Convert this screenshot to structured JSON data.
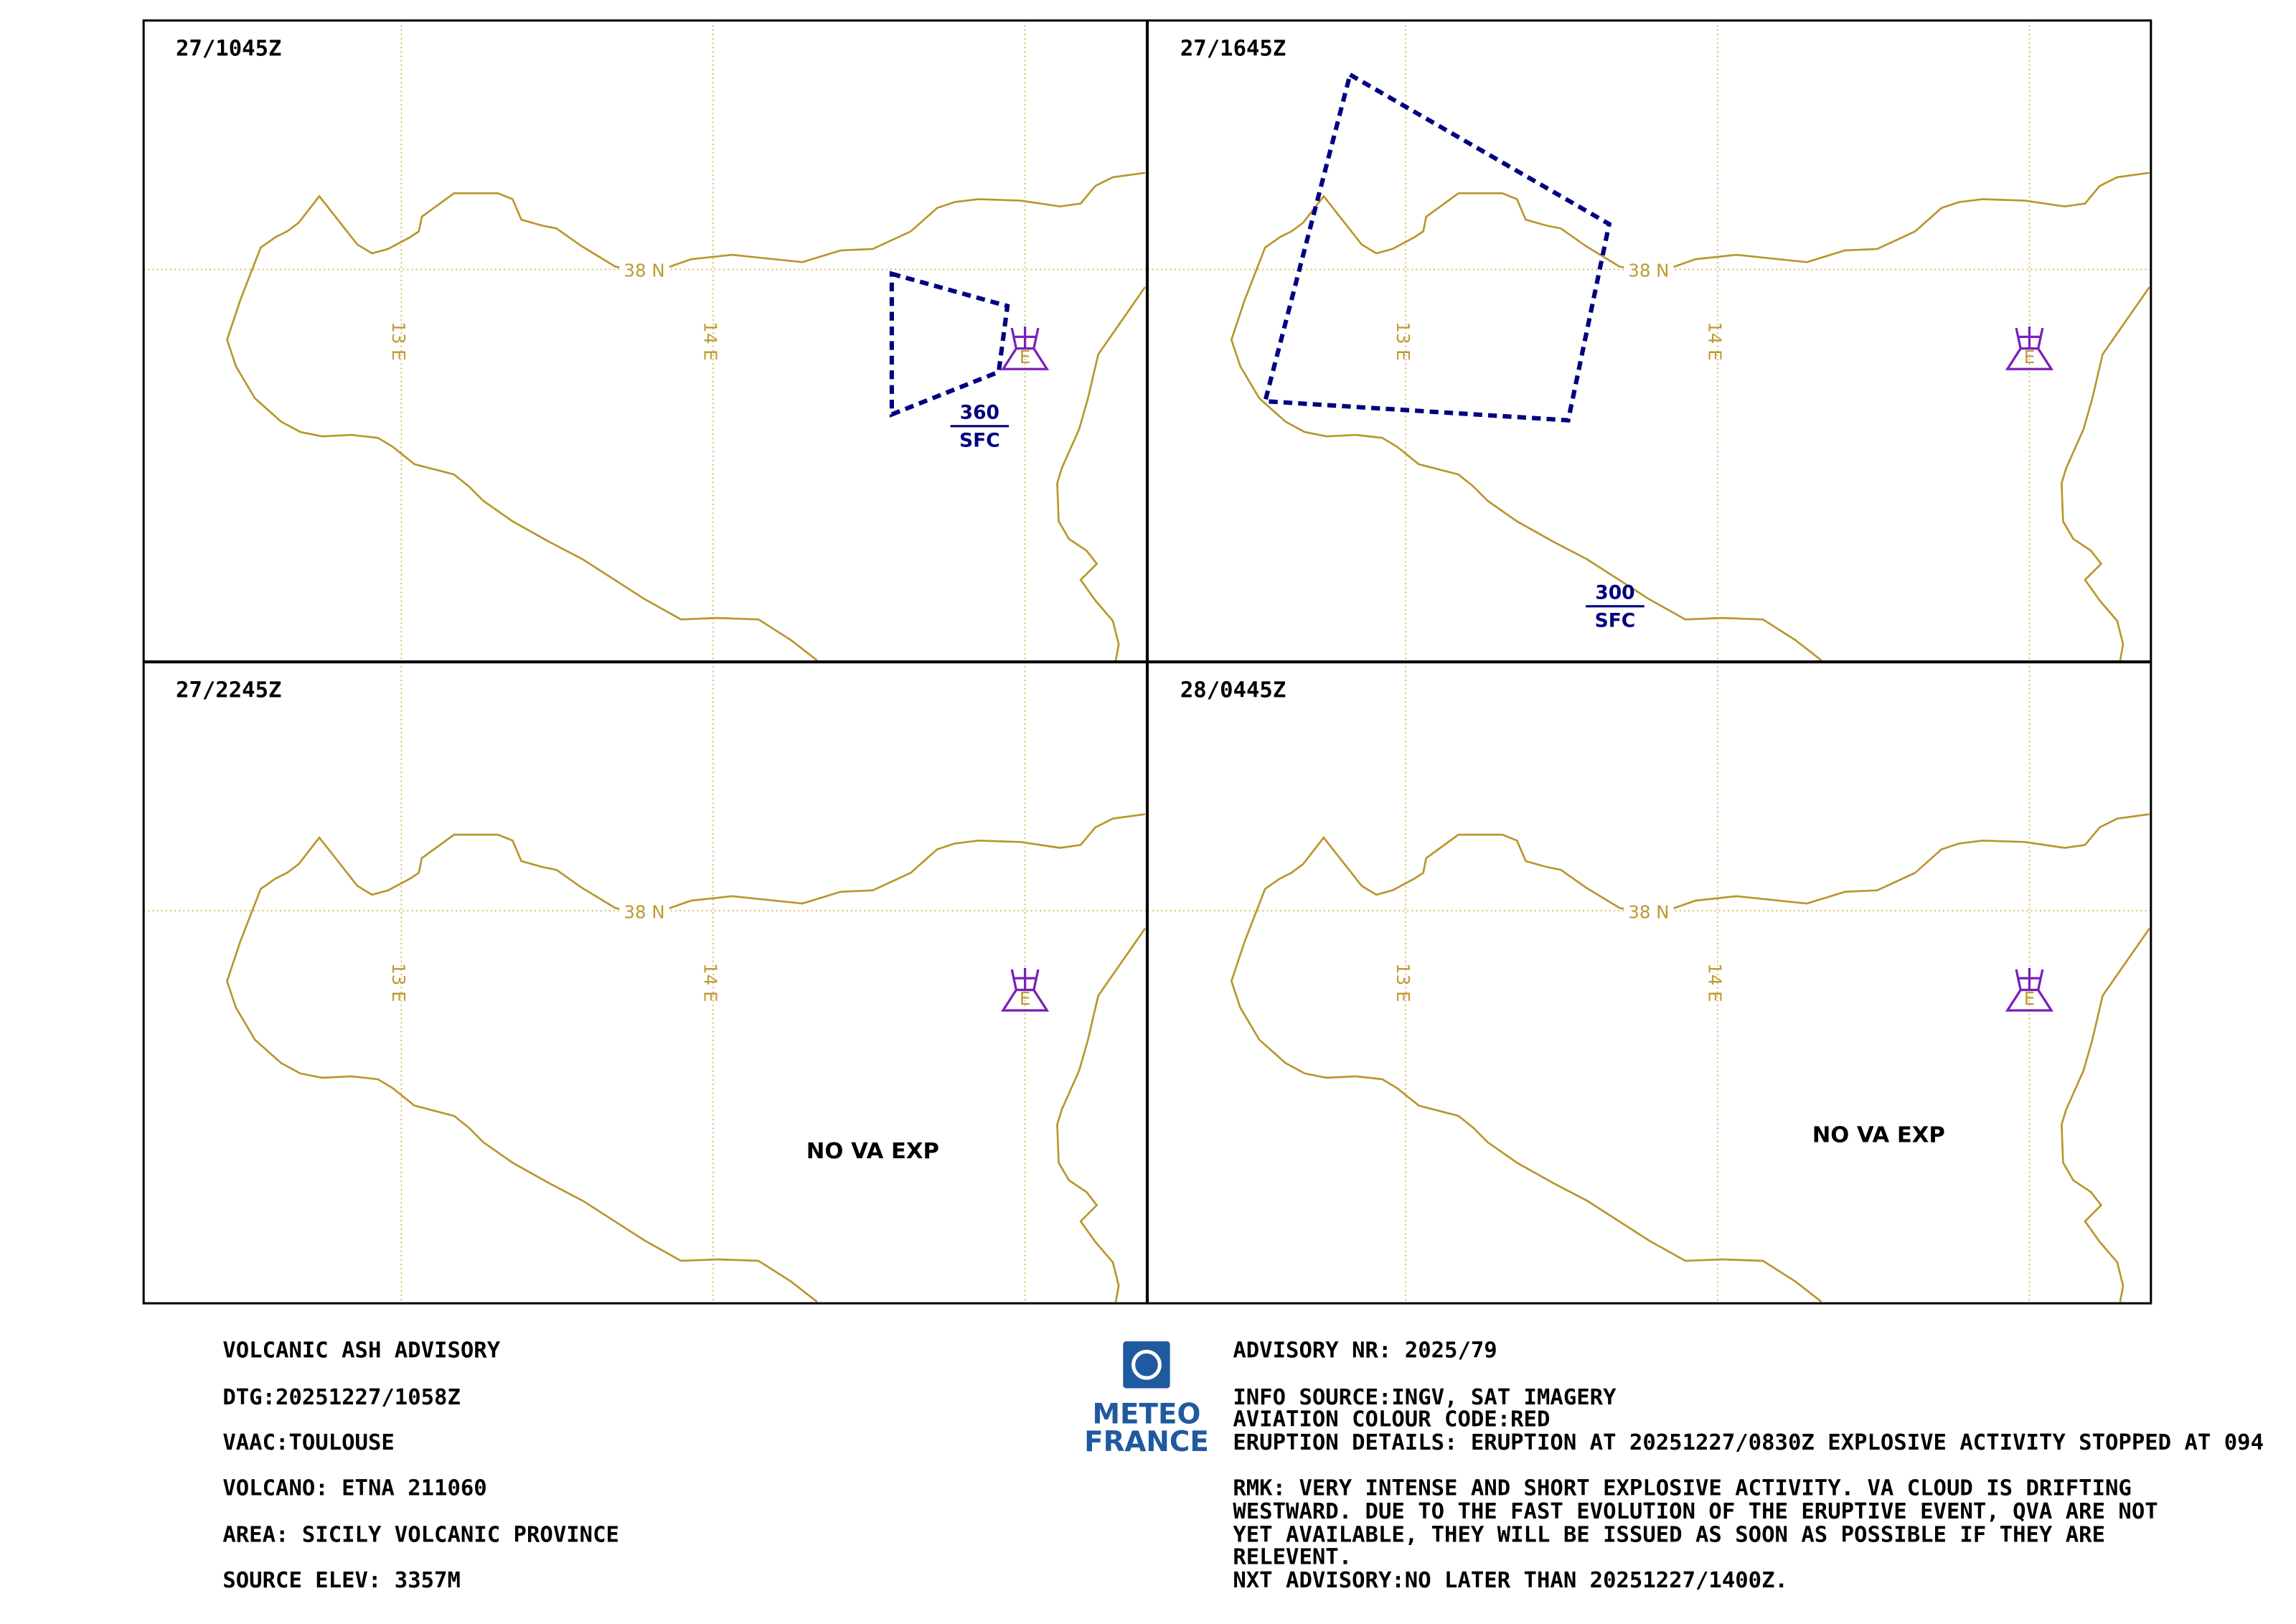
{
  "panels": [
    {
      "time": "27/1045Z",
      "cloud": [
        [
          609,
          187
        ],
        [
          688,
          209
        ],
        [
          682,
          254
        ],
        [
          609,
          283
        ]
      ],
      "level_top": "360",
      "level_bottom": "SFC",
      "level_at": [
        669,
        281
      ]
    },
    {
      "time": "27/1645Z",
      "cloud": [
        [
          922,
          51
        ],
        [
          1099,
          153
        ],
        [
          1071,
          287
        ],
        [
          864,
          274
        ]
      ],
      "level_top": "300",
      "level_bottom": "SFC",
      "level_at": [
        1103,
        404
      ]
    },
    {
      "time": "27/2245Z",
      "note": "NO VA EXP",
      "note_at": [
        596,
        786
      ]
    },
    {
      "time": "28/0445Z",
      "note": "NO VA EXP",
      "note_at": [
        1283,
        775
      ]
    }
  ],
  "grid_labels": {
    "lat": "38 N",
    "lon_west": "13 E",
    "lon_east": "14 E"
  },
  "volcano_letter": "E",
  "advisory_left": [
    "VOLCANIC ASH ADVISORY",
    "DTG:20251227/1058Z",
    "VAAC:TOULOUSE",
    "VOLCANO: ETNA 211060",
    "AREA: SICILY VOLCANIC PROVINCE",
    "SOURCE ELEV: 3357M"
  ],
  "advisory_right": [
    "ADVISORY NR: 2025/79",
    "INFO SOURCE:INGV, SAT IMAGERY",
    "AVIATION COLOUR CODE:RED",
    "ERUPTION DETAILS: ERUPTION AT 20251227/0830Z EXPLOSIVE ACTIVITY STOPPED AT 094",
    "RMK: VERY INTENSE AND SHORT EXPLOSIVE ACTIVITY. VA  CLOUD IS DRIFTING",
    "WESTWARD.  DUE TO THE FAST  EVOLUTION OF THE ERUPTIVE EVENT, QVA ARE NOT",
    "YET  AVAILABLE, THEY  WILL BE ISSUED AS SOON AS  POSSIBLE IF THEY ARE",
    "RELEVENT.",
    "NXT ADVISORY:NO LATER THAN 20251227/1400Z."
  ],
  "logo": {
    "line1": "METEO",
    "line2": "FRANCE"
  }
}
